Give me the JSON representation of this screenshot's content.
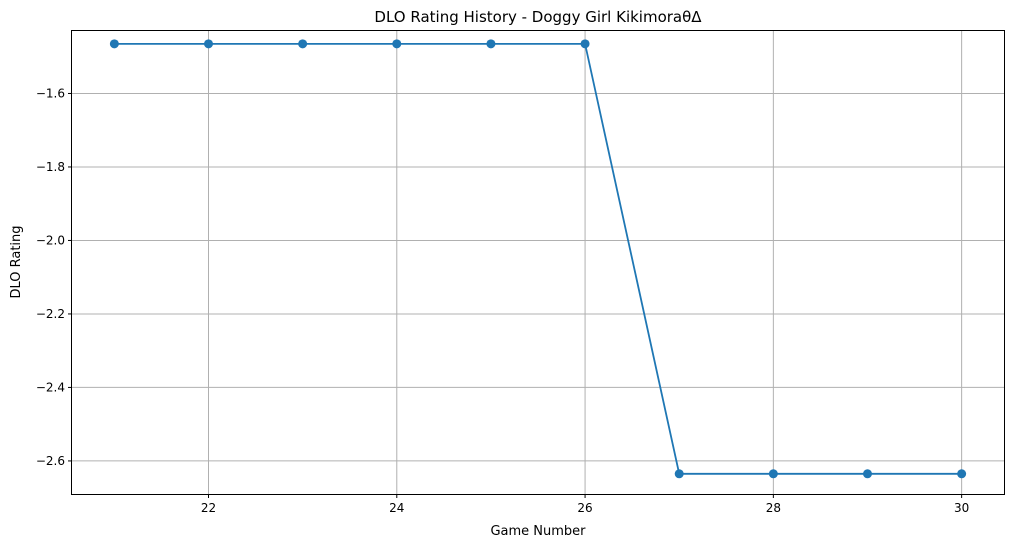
{
  "chart_data": {
    "type": "line",
    "title": "DLO Rating History - Doggy Girl KikimoraθΔ",
    "xlabel": "Game Number",
    "ylabel": "DLO Rating",
    "xlim": [
      20.55,
      30.45
    ],
    "ylim": [
      -2.69,
      -1.43
    ],
    "xticks": [
      22,
      24,
      26,
      28,
      30
    ],
    "yticks": [
      -1.6,
      -1.8,
      -2.0,
      -2.2,
      -2.4,
      -2.6
    ],
    "xtick_labels": [
      "22",
      "24",
      "26",
      "28",
      "30"
    ],
    "ytick_labels": [
      "−1.6",
      "−1.8",
      "−2.0",
      "−2.2",
      "−2.4",
      "−2.6"
    ],
    "grid": true,
    "series": [
      {
        "color": "#1f77b4",
        "marker": "circle",
        "x": [
          21,
          22,
          23,
          24,
          25,
          26,
          27,
          28,
          29,
          30
        ],
        "y": [
          -1.465,
          -1.465,
          -1.465,
          -1.465,
          -1.465,
          -1.465,
          -2.635,
          -2.635,
          -2.635,
          -2.635
        ]
      }
    ]
  }
}
